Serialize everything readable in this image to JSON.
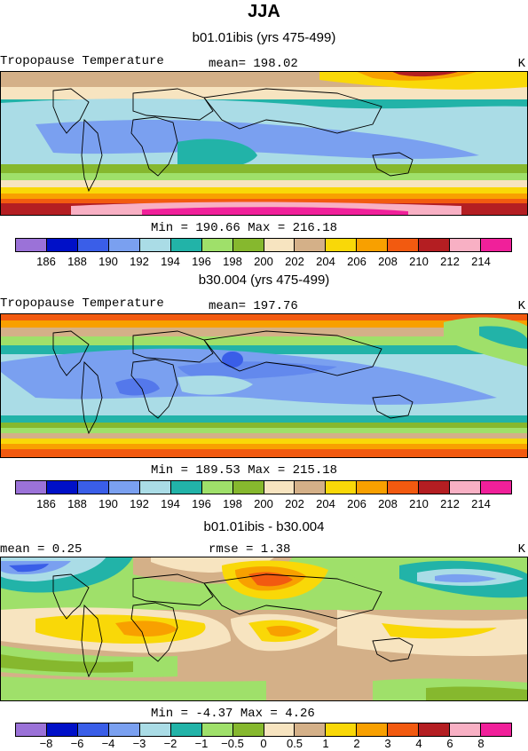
{
  "header": {
    "title": "JJA"
  },
  "panels": [
    {
      "title": "b01.01ibis (yrs 475-499)",
      "left_label": "Tropopause Temperature",
      "center_label": "mean=  198.02",
      "right_label": "K",
      "minmax": "Min =  190.66  Max =  216.18"
    },
    {
      "title": "b30.004 (yrs 475-499)",
      "left_label": "Tropopause Temperature",
      "center_label": "mean=  197.76",
      "right_label": "K",
      "minmax": "Min =  189.53  Max =  215.18"
    },
    {
      "title": "b01.01ibis - b30.004",
      "left_label": "mean =    0.25",
      "center_label": "rmse =    1.38",
      "right_label": "K",
      "minmax": "Min =   -4.37  Max =    4.26"
    }
  ],
  "colors": [
    "#9b72d8",
    "#0010c8",
    "#3a5ee8",
    "#7aa0f0",
    "#aadce6",
    "#22b3a8",
    "#9fe06a",
    "#86b82e",
    "#f7e4c0",
    "#d4b088",
    "#f9d808",
    "#f8a000",
    "#f25a10",
    "#b41e22",
    "#f8b0c4",
    "#f0209a"
  ],
  "colorbar_labels": {
    "absolute": [
      "186",
      "188",
      "190",
      "192",
      "194",
      "196",
      "198",
      "200",
      "202",
      "204",
      "206",
      "208",
      "210",
      "212",
      "214"
    ],
    "difference": [
      "−8",
      "−6",
      "−4",
      "−3",
      "−2",
      "−1",
      "−0.5",
      "0",
      "0.5",
      "1",
      "2",
      "3",
      "4",
      "6",
      "8"
    ]
  }
}
